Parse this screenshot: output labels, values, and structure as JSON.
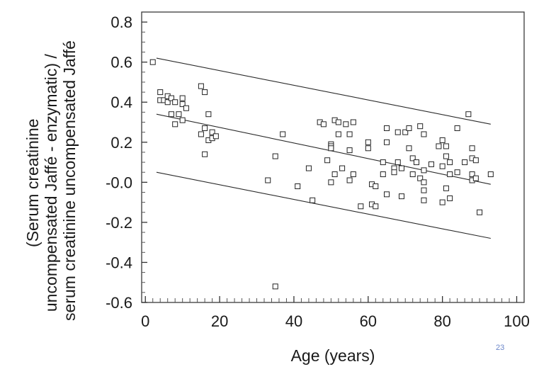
{
  "page": {
    "slide_number": "23"
  },
  "chart_data": {
    "type": "scatter",
    "xlabel": "Age (years)",
    "ylabel_lines": [
      "(Serum creatinine",
      "uncompensated Jaffé - enzymatic) /",
      "serum creatinine uncompensated Jaffé"
    ],
    "xlim": [
      -1,
      102
    ],
    "ylim": [
      -0.6,
      0.85
    ],
    "x_ticks": [
      0,
      20,
      40,
      60,
      80,
      100
    ],
    "x_tick_labels": [
      "0",
      "20",
      "40",
      "60",
      "80",
      "100"
    ],
    "y_ticks": [
      0.8,
      0.6,
      0.4,
      0.2,
      0.0,
      -0.2,
      -0.4,
      -0.6
    ],
    "y_tick_labels": [
      "0.8",
      "0.6",
      "0.4",
      "0.2",
      "-0.0",
      "-0.2",
      "-0.4",
      "-0.6"
    ],
    "grid": false,
    "marker": "open-square",
    "series": [
      {
        "points": [
          [
            2,
            0.6
          ],
          [
            4,
            0.45
          ],
          [
            4,
            0.41
          ],
          [
            5,
            0.41
          ],
          [
            6,
            0.43
          ],
          [
            6,
            0.4
          ],
          [
            7,
            0.42
          ],
          [
            7,
            0.34
          ],
          [
            8,
            0.4
          ],
          [
            8,
            0.29
          ],
          [
            9,
            0.34
          ],
          [
            10,
            0.42
          ],
          [
            10,
            0.31
          ],
          [
            10,
            0.39
          ],
          [
            11,
            0.37
          ],
          [
            15,
            0.48
          ],
          [
            15,
            0.24
          ],
          [
            16,
            0.45
          ],
          [
            16,
            0.27
          ],
          [
            16,
            0.14
          ],
          [
            17,
            0.34
          ],
          [
            17,
            0.21
          ],
          [
            18,
            0.25
          ],
          [
            18,
            0.22
          ],
          [
            19,
            0.23
          ],
          [
            33,
            0.01
          ],
          [
            35,
            0.13
          ],
          [
            35,
            -0.52
          ],
          [
            37,
            0.24
          ],
          [
            41,
            -0.02
          ],
          [
            44,
            0.07
          ],
          [
            45,
            -0.09
          ],
          [
            47,
            0.3
          ],
          [
            48,
            0.29
          ],
          [
            49,
            0.11
          ],
          [
            50,
            0.19
          ],
          [
            50,
            0.18
          ],
          [
            50,
            0.17
          ],
          [
            50,
            0.0
          ],
          [
            51,
            0.31
          ],
          [
            51,
            0.04
          ],
          [
            52,
            0.24
          ],
          [
            52,
            0.3
          ],
          [
            53,
            0.07
          ],
          [
            54,
            0.29
          ],
          [
            55,
            0.24
          ],
          [
            55,
            0.16
          ],
          [
            55,
            0.01
          ],
          [
            56,
            0.3
          ],
          [
            56,
            0.04
          ],
          [
            58,
            -0.12
          ],
          [
            60,
            0.2
          ],
          [
            60,
            0.17
          ],
          [
            61,
            -0.01
          ],
          [
            61,
            -0.11
          ],
          [
            62,
            -0.12
          ],
          [
            62,
            -0.02
          ],
          [
            64,
            0.1
          ],
          [
            64,
            0.04
          ],
          [
            65,
            0.27
          ],
          [
            65,
            0.2
          ],
          [
            65,
            -0.06
          ],
          [
            67,
            0.07
          ],
          [
            67,
            0.05
          ],
          [
            68,
            0.1
          ],
          [
            68,
            0.25
          ],
          [
            69,
            0.07
          ],
          [
            69,
            -0.07
          ],
          [
            70,
            0.25
          ],
          [
            71,
            0.27
          ],
          [
            71,
            0.17
          ],
          [
            72,
            0.04
          ],
          [
            72,
            0.12
          ],
          [
            73,
            0.1
          ],
          [
            74,
            0.02
          ],
          [
            74,
            0.28
          ],
          [
            75,
            0.24
          ],
          [
            75,
            0.06
          ],
          [
            75,
            0.0
          ],
          [
            75,
            -0.04
          ],
          [
            75,
            -0.09
          ],
          [
            77,
            0.09
          ],
          [
            79,
            0.18
          ],
          [
            80,
            0.21
          ],
          [
            80,
            0.08
          ],
          [
            80,
            -0.1
          ],
          [
            81,
            0.13
          ],
          [
            81,
            -0.03
          ],
          [
            81,
            0.18
          ],
          [
            82,
            0.1
          ],
          [
            82,
            0.04
          ],
          [
            82,
            -0.08
          ],
          [
            84,
            0.27
          ],
          [
            84,
            0.05
          ],
          [
            86,
            0.1
          ],
          [
            87,
            0.34
          ],
          [
            88,
            0.17
          ],
          [
            88,
            0.12
          ],
          [
            88,
            0.04
          ],
          [
            88,
            0.01
          ],
          [
            89,
            0.11
          ],
          [
            89,
            0.02
          ],
          [
            90,
            -0.15
          ],
          [
            93,
            0.04
          ]
        ]
      }
    ],
    "lines": [
      {
        "x": [
          3,
          93
        ],
        "y": [
          0.62,
          0.29
        ]
      },
      {
        "x": [
          3,
          93
        ],
        "y": [
          0.34,
          -0.01
        ]
      },
      {
        "x": [
          3,
          93
        ],
        "y": [
          0.05,
          -0.28
        ]
      }
    ]
  }
}
